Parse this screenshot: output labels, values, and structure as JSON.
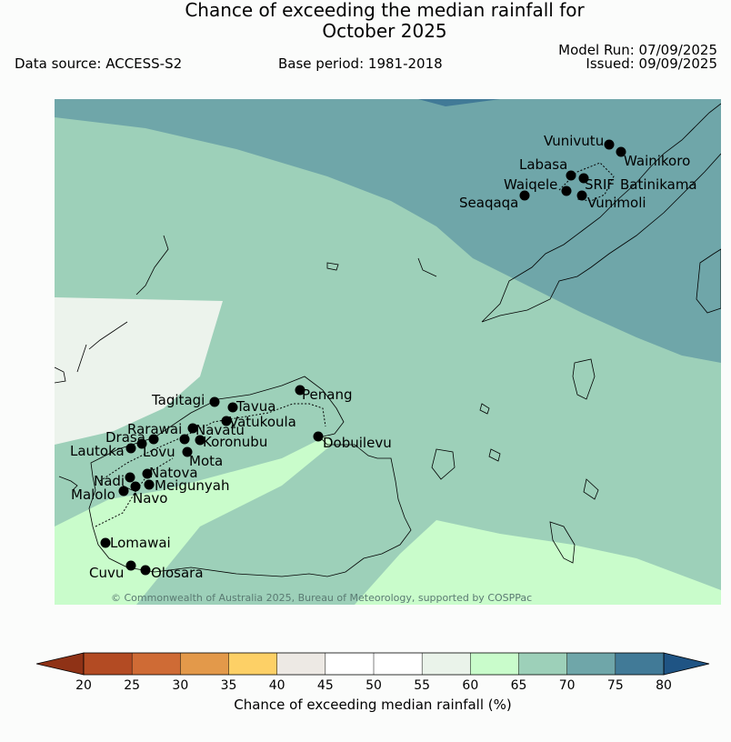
{
  "title_line1": "Chance of exceeding the median rainfall for",
  "title_line2": "October 2025",
  "data_source": "Data source: ACCESS-S2",
  "base_period": "Base period: 1981-2018",
  "model_run": "Model Run: 07/09/2025",
  "issued": "Issued: 09/09/2025",
  "copyright": "© Commonwealth of Australia 2025, Bureau of Meteorology, supported by COSPPac",
  "colorbar": {
    "label": "Chance of exceeding median rainfall (%)",
    "ticks": [
      "20",
      "25",
      "30",
      "35",
      "40",
      "45",
      "50",
      "55",
      "60",
      "65",
      "70",
      "75",
      "80"
    ],
    "colors": [
      "#b34b23",
      "#cf6b35",
      "#e3994a",
      "#fdd066",
      "#ede9e4",
      "#ffffff",
      "#ffffff",
      "#eaf3ea",
      "#c9fccb",
      "#9dd0b9",
      "#6fa6a9",
      "#417a97"
    ],
    "under_color": "#8f3216",
    "over_color": "#1f5484"
  },
  "zone_colors": {
    "c40_45": "#ecf3ec",
    "c60_65": "#c9fccb",
    "c65_70": "#9dd0b9",
    "c70_75": "#6fa6a9",
    "c75_80": "#417a97"
  },
  "stations": [
    {
      "name": "Vunivutu"
    },
    {
      "name": "Wainikoro"
    },
    {
      "name": "Labasa"
    },
    {
      "name": "SRIF"
    },
    {
      "name": "Batinikama"
    },
    {
      "name": "Waiqele"
    },
    {
      "name": "Seaqaqa"
    },
    {
      "name": "Vunimoli"
    },
    {
      "name": "Penang"
    },
    {
      "name": "Tagitagi"
    },
    {
      "name": "Tavua"
    },
    {
      "name": "Vatukoula"
    },
    {
      "name": "Rarawai"
    },
    {
      "name": "Navatu"
    },
    {
      "name": "Koronubu"
    },
    {
      "name": "Drasa"
    },
    {
      "name": "Lautoka"
    },
    {
      "name": "Lovu"
    },
    {
      "name": "Mota"
    },
    {
      "name": "Dobuilevu"
    },
    {
      "name": "Natova"
    },
    {
      "name": "Nadi"
    },
    {
      "name": "Meigunyah"
    },
    {
      "name": "Malolo"
    },
    {
      "name": "Navo"
    },
    {
      "name": "Lomawai"
    },
    {
      "name": "Cuvu"
    },
    {
      "name": "Olosara"
    }
  ]
}
